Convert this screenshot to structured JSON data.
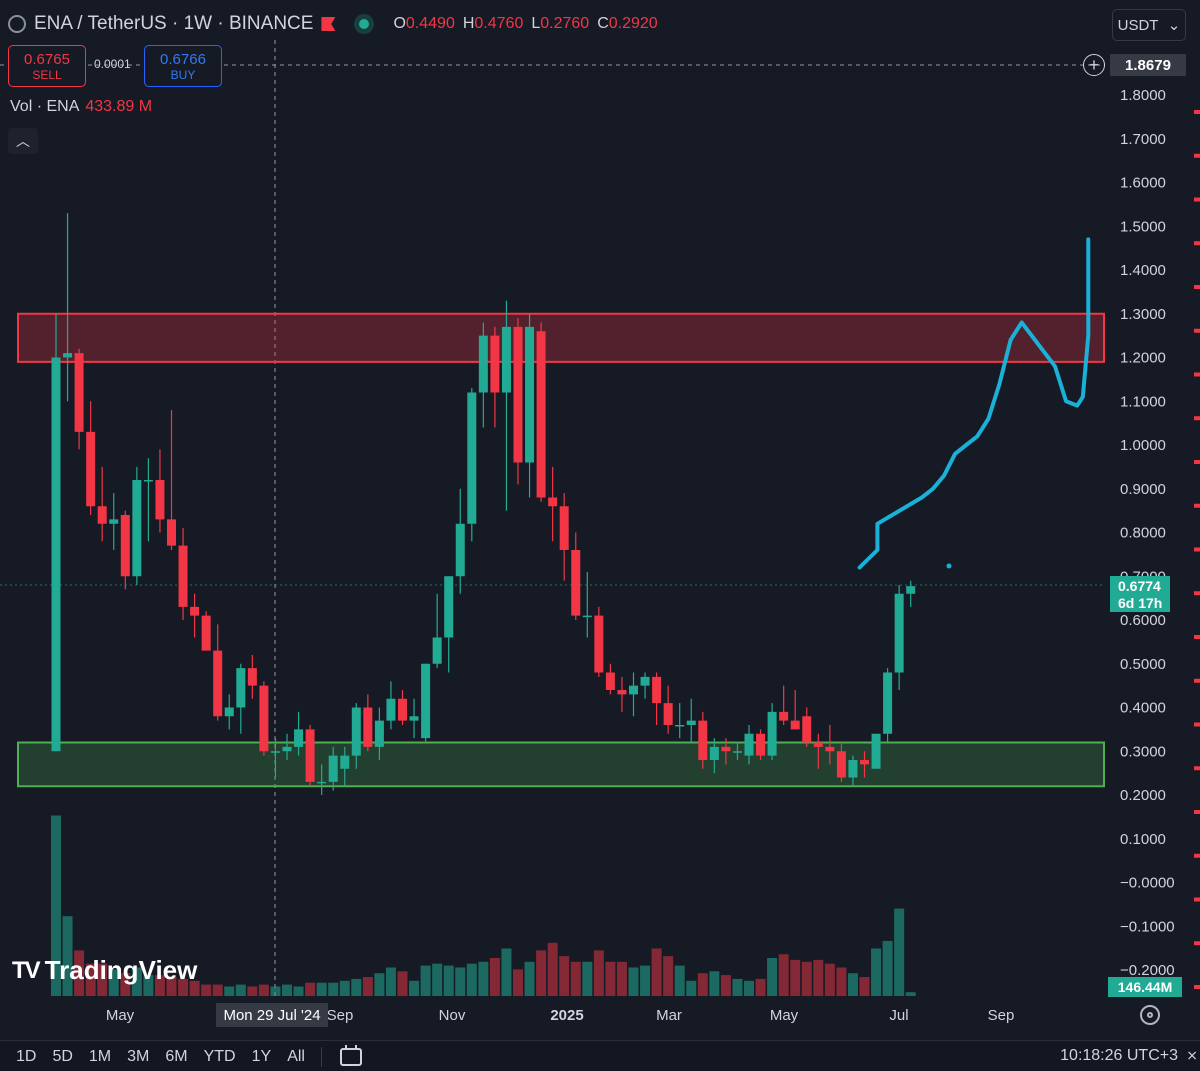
{
  "header": {
    "symbol": "ENA / TetherUS · 1W · BINANCE",
    "ohlc": [
      {
        "key": "O",
        "value": "0.4490"
      },
      {
        "key": "H",
        "value": "0.4760"
      },
      {
        "key": "L",
        "value": "0.2760"
      },
      {
        "key": "C",
        "value": "0.2920"
      }
    ]
  },
  "trade": {
    "sell_price": "0.6765",
    "sell_label": "SELL",
    "buy_price": "0.6766",
    "buy_label": "BUY",
    "spread": "0.0001"
  },
  "volume": {
    "label": "Vol · ENA",
    "value": "433.89 M",
    "tag": "146.44M"
  },
  "price_axis": {
    "currency": "USDT",
    "crosshair_price": "1.8679",
    "last_price": "0.6774",
    "countdown": "6d 17h",
    "ticks": [
      "1.8000",
      "1.7000",
      "1.6000",
      "1.5000",
      "1.4000",
      "1.3000",
      "1.2000",
      "1.1000",
      "1.0000",
      "0.9000",
      "0.8000",
      "0.7000",
      "0.6000",
      "0.5000",
      "0.4000",
      "0.3000",
      "0.2000",
      "0.1000",
      "−0.0000",
      "−0.1000",
      "−0.2000"
    ]
  },
  "time_axis": {
    "labels": [
      "May",
      "Sep",
      "Nov",
      "2025",
      "Mar",
      "May",
      "Jul",
      "Sep"
    ],
    "crosshair_date": "Mon 29 Jul '24"
  },
  "branding": {
    "logo_text": "TradingView"
  },
  "bottom_bar": {
    "timeframes": [
      "1D",
      "5D",
      "1M",
      "3M",
      "6M",
      "YTD",
      "1Y",
      "All"
    ],
    "clock": "10:18:26 UTC+3"
  },
  "colors": {
    "up": "#22ab94",
    "down": "#f23645",
    "projection": "#1ab0d8",
    "resistance_zone": "#f23645",
    "support_zone": "#4caf50"
  },
  "chart_data": {
    "type": "candlestick",
    "title": "ENA / TetherUS · 1W · BINANCE",
    "ylim": [
      -0.2,
      1.9
    ],
    "zones": [
      {
        "name": "resistance",
        "low": 1.19,
        "high": 1.3
      },
      {
        "name": "support",
        "low": 0.22,
        "high": 0.32
      }
    ],
    "candles": [
      {
        "o": 0.3,
        "h": 1.3,
        "l": 0.3,
        "c": 1.2,
        "v": 0.95
      },
      {
        "o": 1.2,
        "h": 1.53,
        "l": 1.1,
        "c": 1.21,
        "v": 0.42
      },
      {
        "o": 1.21,
        "h": 1.22,
        "l": 0.99,
        "c": 1.03,
        "v": 0.24
      },
      {
        "o": 1.03,
        "h": 1.1,
        "l": 0.84,
        "c": 0.86,
        "v": 0.17
      },
      {
        "o": 0.86,
        "h": 0.95,
        "l": 0.78,
        "c": 0.82,
        "v": 0.17
      },
      {
        "o": 0.82,
        "h": 0.89,
        "l": 0.76,
        "c": 0.83,
        "v": 0.14
      },
      {
        "o": 0.84,
        "h": 0.85,
        "l": 0.67,
        "c": 0.7,
        "v": 0.12
      },
      {
        "o": 0.7,
        "h": 0.95,
        "l": 0.68,
        "c": 0.92,
        "v": 0.15
      },
      {
        "o": 0.92,
        "h": 0.97,
        "l": 0.78,
        "c": 0.92,
        "v": 0.11
      },
      {
        "o": 0.92,
        "h": 0.99,
        "l": 0.8,
        "c": 0.83,
        "v": 0.11
      },
      {
        "o": 0.83,
        "h": 1.08,
        "l": 0.76,
        "c": 0.77,
        "v": 0.1
      },
      {
        "o": 0.77,
        "h": 0.81,
        "l": 0.6,
        "c": 0.63,
        "v": 0.09
      },
      {
        "o": 0.63,
        "h": 0.66,
        "l": 0.56,
        "c": 0.61,
        "v": 0.08
      },
      {
        "o": 0.61,
        "h": 0.62,
        "l": 0.53,
        "c": 0.53,
        "v": 0.06
      },
      {
        "o": 0.53,
        "h": 0.59,
        "l": 0.37,
        "c": 0.38,
        "v": 0.06
      },
      {
        "o": 0.38,
        "h": 0.43,
        "l": 0.35,
        "c": 0.4,
        "v": 0.05
      },
      {
        "o": 0.4,
        "h": 0.5,
        "l": 0.34,
        "c": 0.49,
        "v": 0.06
      },
      {
        "o": 0.49,
        "h": 0.52,
        "l": 0.42,
        "c": 0.45,
        "v": 0.05
      },
      {
        "o": 0.45,
        "h": 0.46,
        "l": 0.29,
        "c": 0.3,
        "v": 0.06
      },
      {
        "o": 0.3,
        "h": 0.33,
        "l": 0.24,
        "c": 0.3,
        "v": 0.05
      },
      {
        "o": 0.3,
        "h": 0.34,
        "l": 0.28,
        "c": 0.31,
        "v": 0.06
      },
      {
        "o": 0.31,
        "h": 0.39,
        "l": 0.29,
        "c": 0.35,
        "v": 0.05
      },
      {
        "o": 0.35,
        "h": 0.36,
        "l": 0.22,
        "c": 0.23,
        "v": 0.07
      },
      {
        "o": 0.23,
        "h": 0.27,
        "l": 0.2,
        "c": 0.23,
        "v": 0.07
      },
      {
        "o": 0.23,
        "h": 0.31,
        "l": 0.21,
        "c": 0.29,
        "v": 0.07
      },
      {
        "o": 0.26,
        "h": 0.31,
        "l": 0.22,
        "c": 0.29,
        "v": 0.08
      },
      {
        "o": 0.29,
        "h": 0.41,
        "l": 0.26,
        "c": 0.4,
        "v": 0.09
      },
      {
        "o": 0.4,
        "h": 0.43,
        "l": 0.3,
        "c": 0.31,
        "v": 0.1
      },
      {
        "o": 0.31,
        "h": 0.4,
        "l": 0.28,
        "c": 0.37,
        "v": 0.12
      },
      {
        "o": 0.37,
        "h": 0.46,
        "l": 0.35,
        "c": 0.42,
        "v": 0.15
      },
      {
        "o": 0.42,
        "h": 0.44,
        "l": 0.36,
        "c": 0.37,
        "v": 0.13
      },
      {
        "o": 0.37,
        "h": 0.42,
        "l": 0.33,
        "c": 0.38,
        "v": 0.08
      },
      {
        "o": 0.33,
        "h": 0.5,
        "l": 0.32,
        "c": 0.5,
        "v": 0.16
      },
      {
        "o": 0.5,
        "h": 0.66,
        "l": 0.49,
        "c": 0.56,
        "v": 0.17
      },
      {
        "o": 0.56,
        "h": 0.7,
        "l": 0.48,
        "c": 0.7,
        "v": 0.16
      },
      {
        "o": 0.7,
        "h": 0.9,
        "l": 0.66,
        "c": 0.82,
        "v": 0.15
      },
      {
        "o": 0.82,
        "h": 1.13,
        "l": 0.78,
        "c": 1.12,
        "v": 0.17
      },
      {
        "o": 1.12,
        "h": 1.28,
        "l": 1.04,
        "c": 1.25,
        "v": 0.18
      },
      {
        "o": 1.25,
        "h": 1.27,
        "l": 1.04,
        "c": 1.12,
        "v": 0.2
      },
      {
        "o": 1.12,
        "h": 1.33,
        "l": 0.85,
        "c": 1.27,
        "v": 0.25
      },
      {
        "o": 1.27,
        "h": 1.29,
        "l": 0.91,
        "c": 0.96,
        "v": 0.14
      },
      {
        "o": 0.96,
        "h": 1.3,
        "l": 0.88,
        "c": 1.27,
        "v": 0.18
      },
      {
        "o": 1.26,
        "h": 1.28,
        "l": 0.87,
        "c": 0.88,
        "v": 0.24
      },
      {
        "o": 0.88,
        "h": 0.95,
        "l": 0.78,
        "c": 0.86,
        "v": 0.28
      },
      {
        "o": 0.86,
        "h": 0.89,
        "l": 0.69,
        "c": 0.76,
        "v": 0.21
      },
      {
        "o": 0.76,
        "h": 0.8,
        "l": 0.6,
        "c": 0.61,
        "v": 0.18
      },
      {
        "o": 0.61,
        "h": 0.71,
        "l": 0.56,
        "c": 0.61,
        "v": 0.18
      },
      {
        "o": 0.61,
        "h": 0.63,
        "l": 0.47,
        "c": 0.48,
        "v": 0.24
      },
      {
        "o": 0.48,
        "h": 0.5,
        "l": 0.43,
        "c": 0.44,
        "v": 0.18
      },
      {
        "o": 0.44,
        "h": 0.47,
        "l": 0.39,
        "c": 0.43,
        "v": 0.18
      },
      {
        "o": 0.43,
        "h": 0.48,
        "l": 0.38,
        "c": 0.45,
        "v": 0.15
      },
      {
        "o": 0.45,
        "h": 0.48,
        "l": 0.42,
        "c": 0.47,
        "v": 0.16
      },
      {
        "o": 0.47,
        "h": 0.48,
        "l": 0.36,
        "c": 0.41,
        "v": 0.25
      },
      {
        "o": 0.41,
        "h": 0.45,
        "l": 0.34,
        "c": 0.36,
        "v": 0.21
      },
      {
        "o": 0.36,
        "h": 0.41,
        "l": 0.33,
        "c": 0.36,
        "v": 0.16
      },
      {
        "o": 0.36,
        "h": 0.42,
        "l": 0.32,
        "c": 0.37,
        "v": 0.08
      },
      {
        "o": 0.37,
        "h": 0.39,
        "l": 0.26,
        "c": 0.28,
        "v": 0.12
      },
      {
        "o": 0.28,
        "h": 0.33,
        "l": 0.25,
        "c": 0.31,
        "v": 0.13
      },
      {
        "o": 0.31,
        "h": 0.33,
        "l": 0.27,
        "c": 0.3,
        "v": 0.11
      },
      {
        "o": 0.3,
        "h": 0.32,
        "l": 0.28,
        "c": 0.3,
        "v": 0.09
      },
      {
        "o": 0.29,
        "h": 0.36,
        "l": 0.27,
        "c": 0.34,
        "v": 0.08
      },
      {
        "o": 0.34,
        "h": 0.35,
        "l": 0.28,
        "c": 0.29,
        "v": 0.09
      },
      {
        "o": 0.29,
        "h": 0.41,
        "l": 0.28,
        "c": 0.39,
        "v": 0.2
      },
      {
        "o": 0.39,
        "h": 0.45,
        "l": 0.36,
        "c": 0.37,
        "v": 0.22
      },
      {
        "o": 0.37,
        "h": 0.44,
        "l": 0.35,
        "c": 0.35,
        "v": 0.19
      },
      {
        "o": 0.38,
        "h": 0.4,
        "l": 0.31,
        "c": 0.32,
        "v": 0.18
      },
      {
        "o": 0.32,
        "h": 0.34,
        "l": 0.26,
        "c": 0.31,
        "v": 0.19
      },
      {
        "o": 0.31,
        "h": 0.36,
        "l": 0.27,
        "c": 0.3,
        "v": 0.17
      },
      {
        "o": 0.3,
        "h": 0.32,
        "l": 0.23,
        "c": 0.24,
        "v": 0.15
      },
      {
        "o": 0.24,
        "h": 0.29,
        "l": 0.22,
        "c": 0.28,
        "v": 0.12
      },
      {
        "o": 0.28,
        "h": 0.3,
        "l": 0.24,
        "c": 0.27,
        "v": 0.1
      },
      {
        "o": 0.26,
        "h": 0.34,
        "l": 0.26,
        "c": 0.34,
        "v": 0.25
      },
      {
        "o": 0.34,
        "h": 0.49,
        "l": 0.32,
        "c": 0.48,
        "v": 0.29
      },
      {
        "o": 0.48,
        "h": 0.68,
        "l": 0.44,
        "c": 0.66,
        "v": 0.46
      },
      {
        "o": 0.66,
        "h": 0.69,
        "l": 0.63,
        "c": 0.6774,
        "v": 0.02
      }
    ],
    "projection": [
      [
        0.72,
        0.724
      ],
      [
        0.76,
        0.74
      ],
      [
        0.82,
        0.74
      ],
      [
        0.88,
        0.78
      ],
      [
        0.9,
        0.79
      ],
      [
        0.93,
        0.8
      ],
      [
        0.98,
        0.81
      ],
      [
        1.0,
        0.82
      ],
      [
        1.02,
        0.83
      ],
      [
        1.06,
        0.84
      ],
      [
        1.14,
        0.85
      ],
      [
        1.24,
        0.86
      ],
      [
        1.28,
        0.87
      ],
      [
        1.18,
        0.9
      ],
      [
        1.1,
        0.91
      ],
      [
        1.09,
        0.92
      ],
      [
        1.11,
        0.925
      ],
      [
        1.25,
        0.93
      ],
      [
        1.47,
        0.93
      ]
    ]
  }
}
